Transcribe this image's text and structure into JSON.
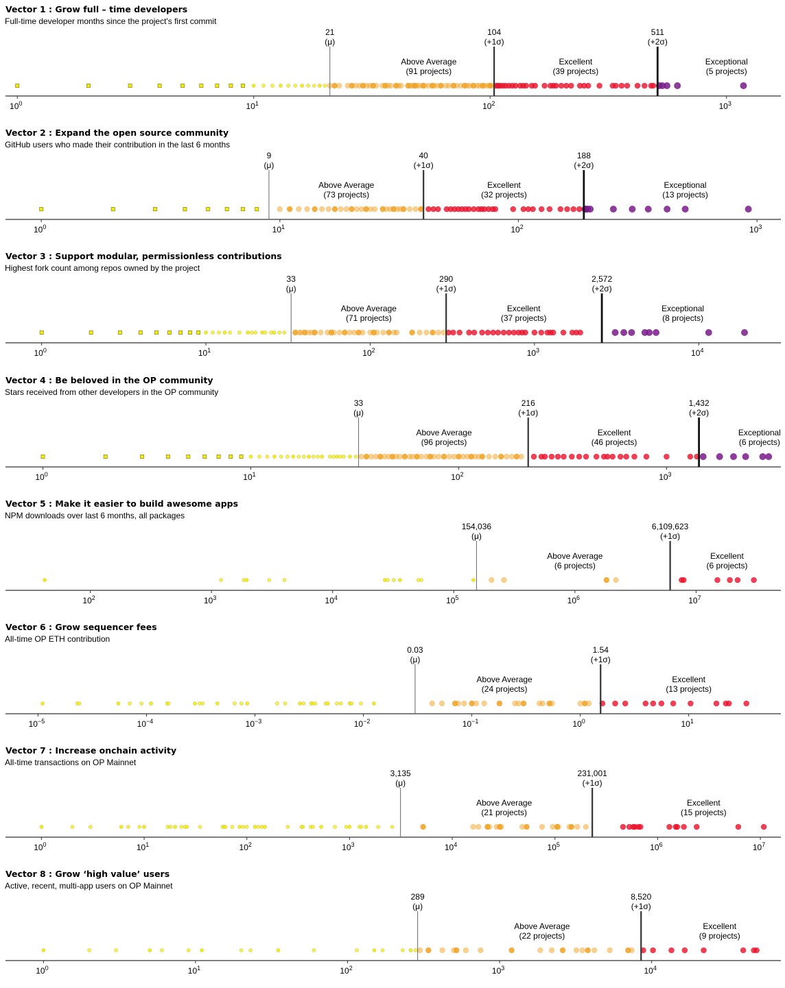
{
  "chart_data": [
    {
      "type": "scatter",
      "title": "Vector 1 :  Grow full – time developers",
      "subtitle": "Full-time developer months since the project's first commit",
      "scale": "log",
      "xlim_exp": [
        -0.05,
        3.23
      ],
      "ticks": [
        {
          "exp": 0,
          "label": "10",
          "sup": "0"
        },
        {
          "exp": 1,
          "label": "10",
          "sup": "1"
        },
        {
          "exp": 2,
          "label": "10",
          "sup": "2"
        },
        {
          "exp": 3,
          "label": "10",
          "sup": "3"
        }
      ],
      "thresholds": [
        {
          "value": 21,
          "label": "21",
          "sub": "(μ)",
          "kind": "mean"
        },
        {
          "value": 104,
          "label": "104",
          "sub": "(+1σ)",
          "kind": "sigma1"
        },
        {
          "value": 511,
          "label": "511",
          "sub": "(+2σ)",
          "kind": "sigma2"
        }
      ],
      "bands": [
        {
          "name": "Above Average",
          "count_label": "(91 projects)",
          "center": 55
        },
        {
          "name": "Excellent",
          "count_label": "(39 projects)",
          "center": 230
        },
        {
          "name": "Exceptional",
          "count_label": "(5 projects)",
          "center": 1000
        }
      ],
      "values": [
        1,
        2,
        3,
        4,
        5,
        6,
        7,
        8,
        9,
        10,
        11,
        12,
        13,
        14,
        15,
        16,
        17,
        18,
        19,
        20,
        21,
        22,
        23,
        25,
        26,
        27,
        28,
        29,
        30,
        31,
        32,
        33,
        35,
        36,
        37,
        38,
        40,
        41,
        42,
        45,
        46,
        47,
        48,
        49,
        50,
        52,
        53,
        55,
        57,
        58,
        60,
        62,
        65,
        67,
        70,
        72,
        75,
        78,
        80,
        82,
        85,
        88,
        90,
        93,
        95,
        98,
        100,
        102,
        106,
        108,
        110,
        113,
        116,
        120,
        124,
        128,
        134,
        138,
        142,
        150,
        155,
        170,
        180,
        185,
        190,
        200,
        210,
        220,
        240,
        250,
        260,
        290,
        330,
        340,
        360,
        380,
        420,
        450,
        480,
        490,
        520,
        535,
        560,
        620,
        1180
      ]
    },
    {
      "type": "scatter",
      "title": "Vector 2 :  Expand the open source community",
      "subtitle": "GitHub users who made their contribution in the last 6 months",
      "scale": "log",
      "xlim_exp": [
        -0.15,
        3.1
      ],
      "ticks": [
        {
          "exp": 0,
          "label": "10",
          "sup": "0"
        },
        {
          "exp": 1,
          "label": "10",
          "sup": "1"
        },
        {
          "exp": 2,
          "label": "10",
          "sup": "2"
        },
        {
          "exp": 3,
          "label": "10",
          "sup": "3"
        }
      ],
      "thresholds": [
        {
          "value": 9,
          "label": "9",
          "sub": "(μ)",
          "kind": "mean"
        },
        {
          "value": 40,
          "label": "40",
          "sub": "(+1σ)",
          "kind": "sigma1"
        },
        {
          "value": 188,
          "label": "188",
          "sub": "(+2σ)",
          "kind": "sigma2"
        }
      ],
      "bands": [
        {
          "name": "Above Average",
          "count_label": "(73 projects)",
          "center": 19
        },
        {
          "name": "Excellent",
          "count_label": "(32 projects)",
          "center": 87
        },
        {
          "name": "Exceptional",
          "count_label": "(13 projects)",
          "center": 500
        }
      ],
      "values": [
        1,
        2,
        3,
        4,
        5,
        6,
        7,
        8,
        10,
        11,
        12,
        13,
        14,
        15,
        16,
        17,
        18,
        19,
        20,
        21,
        22,
        23,
        24,
        25,
        27,
        28,
        29,
        30,
        31,
        32,
        33,
        35,
        37,
        39,
        42,
        44,
        46,
        50,
        52,
        54,
        56,
        58,
        60,
        62,
        65,
        68,
        70,
        72,
        75,
        78,
        80,
        95,
        105,
        110,
        115,
        125,
        135,
        150,
        160,
        170,
        180,
        190,
        192,
        195,
        200,
        250,
        300,
        350,
        420,
        500,
        920
      ]
    },
    {
      "type": "scatter",
      "title": "Vector 3 :  Support modular,  permissionless contributions",
      "subtitle": "Highest fork count among repos owned by the project",
      "scale": "log",
      "xlim_exp": [
        -0.22,
        4.5
      ],
      "ticks": [
        {
          "exp": 0,
          "label": "10",
          "sup": "0"
        },
        {
          "exp": 1,
          "label": "10",
          "sup": "1"
        },
        {
          "exp": 2,
          "label": "10",
          "sup": "2"
        },
        {
          "exp": 3,
          "label": "10",
          "sup": "3"
        },
        {
          "exp": 4,
          "label": "10",
          "sup": "4"
        }
      ],
      "thresholds": [
        {
          "value": 33,
          "label": "33",
          "sub": "(μ)",
          "kind": "mean"
        },
        {
          "value": 290,
          "label": "290",
          "sub": "(+1σ)",
          "kind": "sigma1"
        },
        {
          "value": 2572,
          "label": "2,572",
          "sub": "(+2σ)",
          "kind": "sigma2"
        }
      ],
      "bands": [
        {
          "name": "Above Average",
          "count_label": "(71 projects)",
          "center": 98
        },
        {
          "name": "Excellent",
          "count_label": "(37 projects)",
          "center": 860
        },
        {
          "name": "Exceptional",
          "count_label": "(8 projects)",
          "center": 8000
        }
      ],
      "values": [
        1,
        2,
        3,
        4,
        5,
        6,
        7,
        8,
        9,
        10,
        11,
        12,
        13,
        14,
        16,
        18,
        19,
        20,
        22,
        23,
        25,
        26,
        28,
        30,
        35,
        37,
        38,
        40,
        42,
        44,
        46,
        50,
        55,
        58,
        60,
        65,
        70,
        75,
        80,
        85,
        90,
        100,
        105,
        110,
        120,
        130,
        140,
        145,
        180,
        200,
        220,
        240,
        260,
        280,
        300,
        320,
        350,
        400,
        430,
        480,
        520,
        560,
        600,
        650,
        700,
        750,
        800,
        840,
        880,
        1000,
        1100,
        1200,
        1250,
        1300,
        1500,
        1700,
        1800,
        1900,
        3100,
        3500,
        3900,
        4700,
        5000,
        5500,
        11500,
        19000
      ]
    },
    {
      "type": "scatter",
      "title": "Vector 4 :  Be beloved in the OP community",
      "subtitle": "Stars received from other developers in the OP community",
      "scale": "log",
      "xlim_exp": [
        -0.18,
        3.55
      ],
      "ticks": [
        {
          "exp": 0,
          "label": "10",
          "sup": "0"
        },
        {
          "exp": 1,
          "label": "10",
          "sup": "1"
        },
        {
          "exp": 2,
          "label": "10",
          "sup": "2"
        },
        {
          "exp": 3,
          "label": "10",
          "sup": "3"
        }
      ],
      "thresholds": [
        {
          "value": 33,
          "label": "33",
          "sub": "(μ)",
          "kind": "mean"
        },
        {
          "value": 216,
          "label": "216",
          "sub": "(+1σ)",
          "kind": "sigma1"
        },
        {
          "value": 1432,
          "label": "1,432",
          "sub": "(+2σ)",
          "kind": "sigma2"
        }
      ],
      "bands": [
        {
          "name": "Above Average",
          "count_label": "(96 projects)",
          "center": 85
        },
        {
          "name": "Excellent",
          "count_label": "(46 projects)",
          "center": 560
        },
        {
          "name": "Exceptional",
          "count_label": "(6 projects)",
          "center": 2800
        }
      ],
      "values": [
        1,
        2,
        3,
        4,
        5,
        6,
        7,
        8,
        9,
        10,
        11,
        12,
        13,
        14,
        15,
        16,
        17,
        18,
        19,
        20,
        21,
        22,
        24,
        25,
        26,
        27,
        28,
        30,
        32,
        34,
        36,
        38,
        40,
        42,
        44,
        46,
        48,
        50,
        52,
        55,
        58,
        60,
        63,
        66,
        70,
        73,
        76,
        80,
        85,
        90,
        95,
        100,
        105,
        110,
        115,
        120,
        125,
        130,
        140,
        150,
        160,
        170,
        180,
        190,
        200,
        230,
        250,
        260,
        280,
        300,
        320,
        350,
        380,
        410,
        460,
        500,
        520,
        550,
        600,
        640,
        700,
        800,
        1000,
        1300,
        1400,
        1500,
        1800,
        2100,
        2400,
        2900,
        3100
      ]
    },
    {
      "type": "scatter",
      "title": "Vector 5 :  Make it easier to build awesome apps",
      "subtitle": "NPM downloads over last 6 months, all packages",
      "scale": "log",
      "xlim_exp": [
        1.3,
        7.7
      ],
      "ticks": [
        {
          "exp": 2,
          "label": "10",
          "sup": "2"
        },
        {
          "exp": 3,
          "label": "10",
          "sup": "3"
        },
        {
          "exp": 4,
          "label": "10",
          "sup": "4"
        },
        {
          "exp": 5,
          "label": "10",
          "sup": "5"
        },
        {
          "exp": 6,
          "label": "10",
          "sup": "6"
        },
        {
          "exp": 7,
          "label": "10",
          "sup": "7"
        }
      ],
      "thresholds": [
        {
          "value": 154036,
          "label": "154,036",
          "sub": "(μ)",
          "kind": "mean"
        },
        {
          "value": 6109623,
          "label": "6,109,623",
          "sub": "(+1σ)",
          "kind": "sigma1"
        }
      ],
      "bands": [
        {
          "name": "Above Average",
          "count_label": "(6 projects)",
          "center": 1000000
        },
        {
          "name": "Excellent",
          "count_label": "(6 projects)",
          "center": 18000000
        }
      ],
      "values": [
        42,
        1200,
        1850,
        1950,
        3000,
        4000,
        27000,
        28500,
        32000,
        36000,
        51000,
        54000,
        145000,
        205000,
        260000,
        1820000,
        2180000,
        7600000,
        7900000,
        15000000,
        19000000,
        22000000,
        30000000
      ]
    },
    {
      "type": "scatter",
      "title": "Vector 6 :  Grow sequencer fees",
      "subtitle": "All-time OP ETH contribution",
      "scale": "log",
      "xlim_exp": [
        -5.3,
        1.85
      ],
      "ticks": [
        {
          "exp": -5,
          "label": "10",
          "sup": "−5"
        },
        {
          "exp": -4,
          "label": "10",
          "sup": "−4"
        },
        {
          "exp": -3,
          "label": "10",
          "sup": "−3"
        },
        {
          "exp": -2,
          "label": "10",
          "sup": "−2"
        },
        {
          "exp": -1,
          "label": "10",
          "sup": "−1"
        },
        {
          "exp": 0,
          "label": "10",
          "sup": "0"
        },
        {
          "exp": 1,
          "label": "10",
          "sup": "1"
        }
      ],
      "thresholds": [
        {
          "value": 0.03,
          "label": "0.03",
          "sub": "(μ)",
          "kind": "mean"
        },
        {
          "value": 1.54,
          "label": "1.54",
          "sub": "(+1σ)",
          "kind": "sigma1"
        }
      ],
      "bands": [
        {
          "name": "Above Average",
          "count_label": "(24 projects)",
          "center": 0.2
        },
        {
          "name": "Excellent",
          "count_label": "(13 projects)",
          "center": 10
        }
      ],
      "values": [
        1.1e-05,
        2.3e-05,
        2.4e-05,
        5.5e-05,
        7e-05,
        9e-05,
        0.00011,
        0.000155,
        0.00016,
        0.00028,
        0.00031,
        0.00033,
        0.00045,
        0.00065,
        0.00075,
        0.00085,
        0.0016,
        0.0019,
        0.0026,
        0.0028,
        0.0033,
        0.0034,
        0.0036,
        0.0045,
        0.0047,
        0.0057,
        0.0062,
        0.0075,
        0.0078,
        0.0095,
        0.0125,
        0.043,
        0.053,
        0.07,
        0.075,
        0.085,
        0.1,
        0.11,
        0.13,
        0.18,
        0.25,
        0.27,
        0.3,
        0.42,
        0.45,
        0.52,
        0.55,
        1.0,
        1.1,
        1.2,
        1.6,
        2.1,
        2.6,
        4.0,
        4.7,
        5.6,
        7.2,
        10.4,
        18,
        22,
        23.5,
        34
      ]
    },
    {
      "type": "scatter",
      "title": "Vector 7 :  Increase onchain activity",
      "subtitle": "All-time transactions on OP Mainnet",
      "scale": "log",
      "xlim_exp": [
        -0.35,
        7.2
      ],
      "ticks": [
        {
          "exp": 0,
          "label": "10",
          "sup": "0"
        },
        {
          "exp": 1,
          "label": "10",
          "sup": "1"
        },
        {
          "exp": 2,
          "label": "10",
          "sup": "2"
        },
        {
          "exp": 3,
          "label": "10",
          "sup": "3"
        },
        {
          "exp": 4,
          "label": "10",
          "sup": "4"
        },
        {
          "exp": 5,
          "label": "10",
          "sup": "5"
        },
        {
          "exp": 6,
          "label": "10",
          "sup": "6"
        },
        {
          "exp": 7,
          "label": "10",
          "sup": "7"
        }
      ],
      "thresholds": [
        {
          "value": 3135,
          "label": "3,135",
          "sub": "(μ)",
          "kind": "mean"
        },
        {
          "value": 231001,
          "label": "231,001",
          "sub": "(+1σ)",
          "kind": "sigma1"
        }
      ],
      "bands": [
        {
          "name": "Above Average",
          "count_label": "(21 projects)",
          "center": 32000
        },
        {
          "name": "Excellent",
          "count_label": "(15 projects)",
          "center": 2800000
        }
      ],
      "values": [
        1,
        2,
        3,
        6,
        7,
        9,
        10,
        17,
        18,
        20,
        23,
        25,
        26,
        35,
        58,
        60,
        62,
        72,
        85,
        92,
        100,
        120,
        130,
        140,
        150,
        250,
        340,
        350,
        420,
        440,
        530,
        720,
        930,
        1000,
        1250,
        1300,
        1450,
        1900,
        2600,
        5200,
        16000,
        18000,
        22000,
        23000,
        27000,
        29000,
        30000,
        48000,
        53000,
        75000,
        95000,
        105000,
        108000,
        138000,
        145000,
        165000,
        200000,
        460000,
        530000,
        580000,
        600000,
        650000,
        680000,
        1300000,
        1500000,
        1550000,
        1800000,
        2400000,
        6100000,
        10800000
      ]
    },
    {
      "type": "scatter",
      "title": "Vector 8 :  Grow ‘high value’ users",
      "subtitle": "Active, recent, multi-app users on OP Mainnet",
      "scale": "log",
      "xlim_exp": [
        -0.25,
        4.85
      ],
      "ticks": [
        {
          "exp": 0,
          "label": "10",
          "sup": "0"
        },
        {
          "exp": 1,
          "label": "10",
          "sup": "1"
        },
        {
          "exp": 2,
          "label": "10",
          "sup": "2"
        },
        {
          "exp": 3,
          "label": "10",
          "sup": "3"
        },
        {
          "exp": 4,
          "label": "10",
          "sup": "4"
        }
      ],
      "thresholds": [
        {
          "value": 289,
          "label": "289",
          "sub": "(μ)",
          "kind": "mean"
        },
        {
          "value": 8520,
          "label": "8,520",
          "sub": "(+1σ)",
          "kind": "sigma1"
        }
      ],
      "bands": [
        {
          "name": "Above Average",
          "count_label": "(22 projects)",
          "center": 1900
        },
        {
          "name": "Excellent",
          "count_label": "(9 projects)",
          "center": 28000
        }
      ],
      "values": [
        1,
        2,
        3,
        5,
        6,
        9,
        11,
        20,
        23,
        35,
        60,
        115,
        150,
        170,
        230,
        260,
        280,
        300,
        340,
        420,
        500,
        520,
        600,
        750,
        1200,
        1850,
        2200,
        2600,
        3200,
        3500,
        3800,
        4200,
        5300,
        7000,
        7400,
        8800,
        10200,
        13500,
        16500,
        22000,
        40000,
        47000,
        49000
      ]
    }
  ],
  "colors": {
    "below_mean": "#f2ea1e",
    "above_average": "#f0a020",
    "excellent": "#e8102a",
    "exceptional": "#7a1a8a",
    "axis": "#333333"
  }
}
